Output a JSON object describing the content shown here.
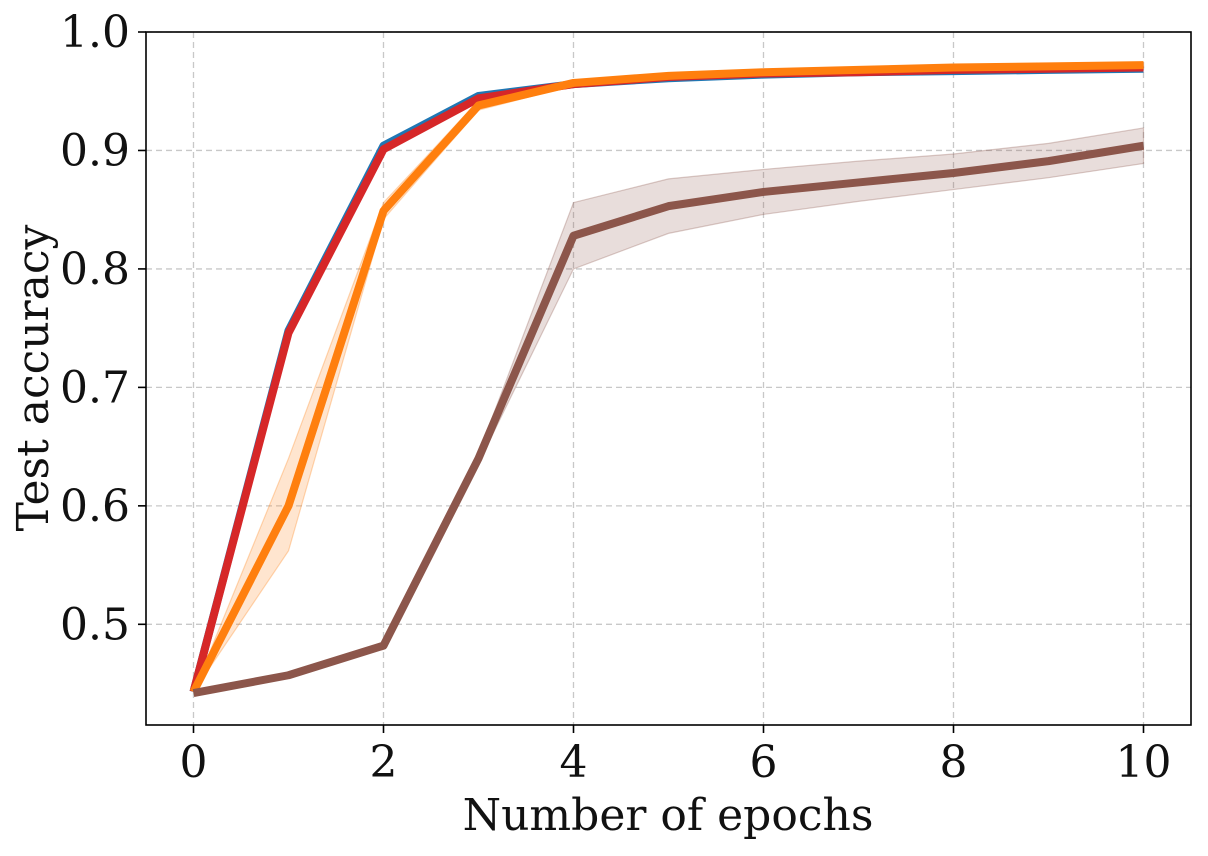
{
  "chart_data": {
    "type": "line",
    "title": "",
    "xlabel": "Number of epochs",
    "ylabel": "Test accuracy",
    "xlim": [
      -0.5,
      10.5
    ],
    "ylim": [
      0.415,
      1.0
    ],
    "xticks": [
      0,
      2,
      4,
      6,
      8,
      10
    ],
    "xtick_labels": [
      "0",
      "2",
      "4",
      "6",
      "8",
      "10"
    ],
    "yticks": [
      0.5,
      0.6,
      0.7,
      0.8,
      0.9,
      1.0
    ],
    "ytick_labels": [
      "0.5",
      "0.6",
      "0.7",
      "0.8",
      "0.9",
      "1.0"
    ],
    "grid": true,
    "legend": "none",
    "x": [
      0,
      1,
      2,
      3,
      4,
      5,
      6,
      7,
      8,
      9,
      10
    ],
    "series": [
      {
        "color": "#1f77b4",
        "values": [
          0.443,
          0.748,
          0.904,
          0.946,
          0.956,
          0.961,
          0.964,
          0.966,
          0.967,
          0.968,
          0.969
        ],
        "lower": [
          0.443,
          0.746,
          0.902,
          0.945,
          0.955,
          0.96,
          0.963,
          0.965,
          0.966,
          0.967,
          0.968
        ],
        "upper": [
          0.443,
          0.75,
          0.906,
          0.947,
          0.957,
          0.962,
          0.965,
          0.967,
          0.968,
          0.969,
          0.97
        ]
      },
      {
        "color": "#d62728",
        "values": [
          0.443,
          0.746,
          0.901,
          0.944,
          0.956,
          0.962,
          0.965,
          0.966,
          0.968,
          0.969,
          0.97
        ],
        "lower": [
          0.443,
          0.744,
          0.899,
          0.943,
          0.955,
          0.961,
          0.964,
          0.965,
          0.967,
          0.968,
          0.969
        ],
        "upper": [
          0.443,
          0.748,
          0.903,
          0.945,
          0.957,
          0.963,
          0.966,
          0.967,
          0.969,
          0.97,
          0.971
        ]
      },
      {
        "color": "#ff7f0e",
        "values": [
          0.443,
          0.6,
          0.849,
          0.938,
          0.957,
          0.963,
          0.966,
          0.968,
          0.97,
          0.971,
          0.972
        ],
        "lower": [
          0.443,
          0.562,
          0.842,
          0.934,
          0.955,
          0.962,
          0.965,
          0.967,
          0.969,
          0.97,
          0.97
        ],
        "upper": [
          0.443,
          0.64,
          0.856,
          0.942,
          0.959,
          0.964,
          0.967,
          0.969,
          0.971,
          0.972,
          0.974
        ]
      },
      {
        "color": "#8c564b",
        "values": [
          0.442,
          0.457,
          0.482,
          0.64,
          0.828,
          0.853,
          0.865,
          0.873,
          0.881,
          0.891,
          0.904
        ],
        "lower": [
          0.442,
          0.456,
          0.481,
          0.636,
          0.8,
          0.83,
          0.846,
          0.857,
          0.867,
          0.877,
          0.889
        ],
        "upper": [
          0.442,
          0.458,
          0.483,
          0.644,
          0.856,
          0.876,
          0.884,
          0.891,
          0.897,
          0.906,
          0.919
        ]
      }
    ]
  }
}
